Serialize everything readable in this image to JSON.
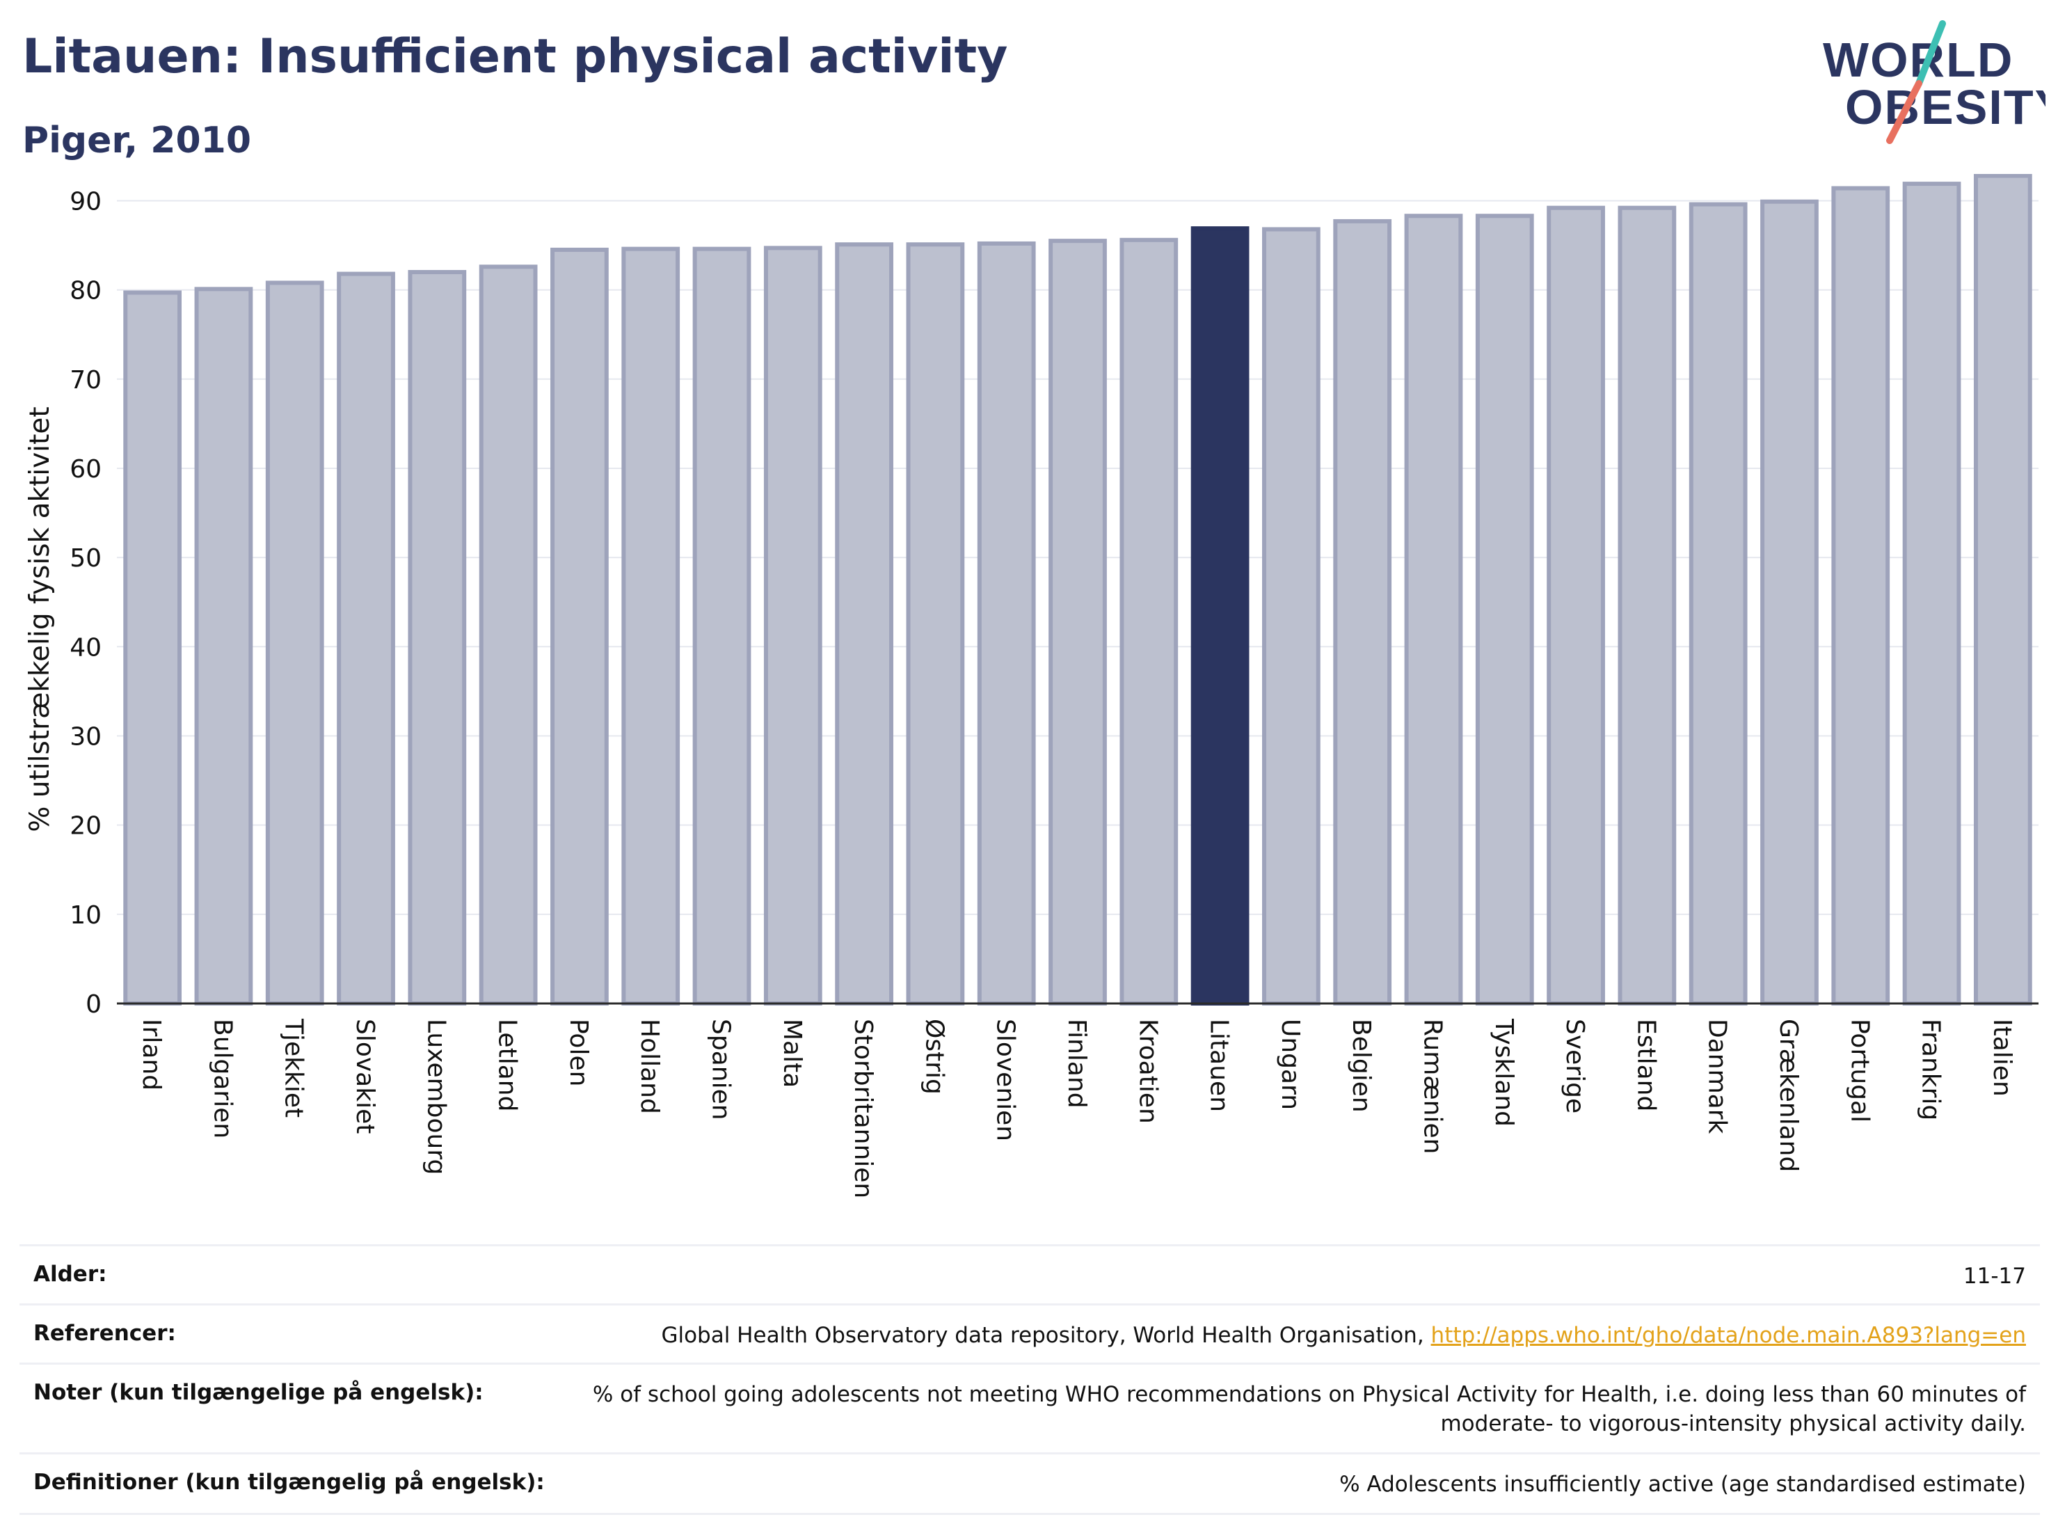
{
  "header": {
    "title": "Litauen: Insufficient physical activity",
    "subtitle": "Piger, 2010",
    "logo_text_line1": "WORLD",
    "logo_text_line2": "OBESITY"
  },
  "colors": {
    "navy": "#2b3560",
    "bar_default": "#bcc0cf",
    "bar_border": "#9ea3bb",
    "bar_highlight": "#2b3560",
    "logo_teal": "#3dbfb3",
    "logo_coral": "#e8705f",
    "link": "#e3a21a"
  },
  "chart_data": {
    "type": "bar",
    "title": "Litauen: Insufficient physical activity",
    "subtitle": "Piger, 2010",
    "xlabel": "",
    "ylabel": "% utilstrækkelig fysisk aktivitet",
    "ylim": [
      0,
      93
    ],
    "yticks": [
      0,
      10,
      20,
      30,
      40,
      50,
      60,
      70,
      80,
      90
    ],
    "grid": true,
    "highlight": "Litauen",
    "categories": [
      "Irland",
      "Bulgarien",
      "Tjekkiet",
      "Slovakiet",
      "Luxembourg",
      "Letland",
      "Polen",
      "Holland",
      "Spanien",
      "Malta",
      "Storbritannien",
      "Østrig",
      "Slovenien",
      "Finland",
      "Kroatien",
      "Litauen",
      "Ungarn",
      "Belgien",
      "Rumænien",
      "Tyskland",
      "Sverige",
      "Estland",
      "Danmark",
      "Grækenland",
      "Portugal",
      "Frankrig",
      "Italien"
    ],
    "values": [
      79.7,
      80.1,
      80.8,
      81.8,
      82.0,
      82.6,
      84.5,
      84.6,
      84.6,
      84.7,
      85.1,
      85.1,
      85.2,
      85.5,
      85.6,
      86.9,
      86.8,
      87.7,
      88.3,
      88.3,
      89.2,
      89.2,
      89.6,
      89.9,
      91.4,
      91.9,
      92.8
    ]
  },
  "info_table": [
    {
      "label": "Alder:",
      "value": "11-17"
    },
    {
      "label": "Referencer:",
      "value": "Global Health Observatory data repository, World Health Organisation, ",
      "link": "http://apps.who.int/gho/data/node.main.A893?lang=en"
    },
    {
      "label": "Noter (kun tilgængelige på engelsk):",
      "value": "% of school going adolescents not meeting WHO recommendations on Physical Activity for Health, i.e. doing less than 60 minutes of moderate- to vigorous-intensity physical activity daily."
    },
    {
      "label": "Definitioner (kun tilgængelig på engelsk):",
      "value": "% Adolescents insufficiently active (age standardised estimate)"
    }
  ]
}
